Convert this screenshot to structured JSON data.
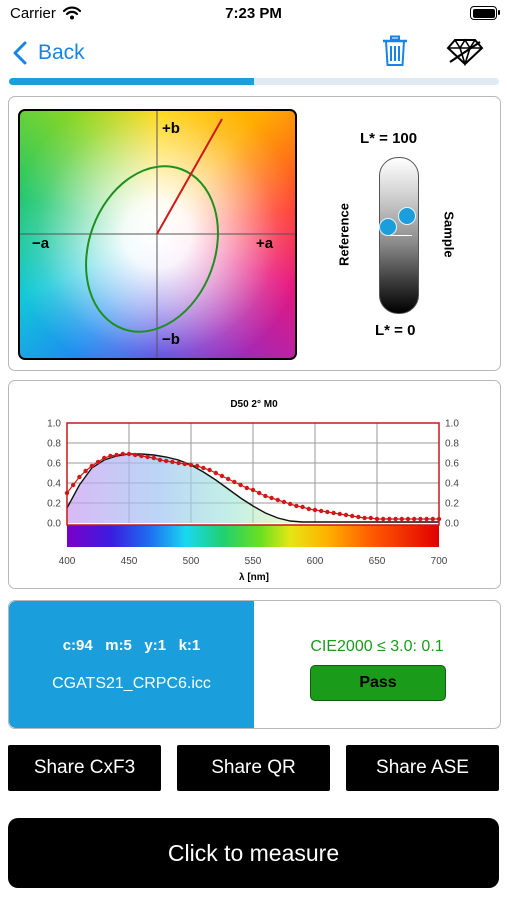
{
  "status_bar": {
    "carrier": "Carrier",
    "time": "7:23 PM"
  },
  "nav": {
    "back_label": "Back"
  },
  "lab": {
    "axis_plus_b": "+b",
    "axis_minus_b": "−b",
    "axis_minus_a": "−a",
    "axis_plus_a": "+a",
    "l_top": "L* = 100",
    "l_bottom": "L* = 0",
    "reference": "Reference",
    "sample": "Sample"
  },
  "chart_data": {
    "type": "line",
    "title": "D50 2° M0",
    "xlabel": "λ [nm]",
    "ylabel": "",
    "xlim": [
      400,
      700
    ],
    "ylim": [
      0,
      1.0
    ],
    "x_ticks": [
      "400",
      "450",
      "500",
      "550",
      "600",
      "650",
      "700"
    ],
    "y_ticks": [
      "0.0",
      "0.2",
      "0.4",
      "0.6",
      "0.8",
      "1.0"
    ],
    "series": [
      {
        "name": "",
        "style": "black line",
        "x": [
          400,
          410,
          420,
          430,
          440,
          450,
          460,
          470,
          480,
          490,
          500,
          510,
          520,
          530,
          540,
          550,
          560,
          570,
          580,
          590,
          600,
          610,
          620,
          630,
          640,
          650,
          660,
          670,
          680,
          690,
          700
        ],
        "y": [
          0.15,
          0.38,
          0.55,
          0.63,
          0.67,
          0.69,
          0.69,
          0.68,
          0.66,
          0.63,
          0.58,
          0.51,
          0.43,
          0.34,
          0.25,
          0.17,
          0.1,
          0.05,
          0.02,
          0.01,
          0.01,
          0.01,
          0.01,
          0.01,
          0.01,
          0.01,
          0.01,
          0.01,
          0.01,
          0.01,
          0.01
        ]
      },
      {
        "name": "",
        "style": "red dotted line",
        "x": [
          400,
          405,
          410,
          415,
          420,
          425,
          430,
          435,
          440,
          445,
          450,
          455,
          460,
          465,
          470,
          475,
          480,
          485,
          490,
          495,
          500,
          505,
          510,
          515,
          520,
          525,
          530,
          535,
          540,
          545,
          550,
          555,
          560,
          565,
          570,
          575,
          580,
          585,
          590,
          595,
          600,
          605,
          610,
          615,
          620,
          625,
          630,
          635,
          640,
          645,
          650,
          655,
          660,
          665,
          670,
          675,
          680,
          685,
          690,
          695,
          700
        ],
        "y": [
          0.3,
          0.38,
          0.46,
          0.52,
          0.57,
          0.61,
          0.65,
          0.67,
          0.68,
          0.69,
          0.69,
          0.68,
          0.67,
          0.66,
          0.65,
          0.63,
          0.62,
          0.61,
          0.6,
          0.59,
          0.58,
          0.57,
          0.55,
          0.53,
          0.5,
          0.47,
          0.44,
          0.41,
          0.38,
          0.35,
          0.33,
          0.3,
          0.27,
          0.25,
          0.23,
          0.21,
          0.19,
          0.17,
          0.16,
          0.14,
          0.13,
          0.12,
          0.11,
          0.1,
          0.09,
          0.08,
          0.07,
          0.06,
          0.05,
          0.05,
          0.04,
          0.04,
          0.04,
          0.04,
          0.04,
          0.04,
          0.04,
          0.04,
          0.04,
          0.04,
          0.04
        ]
      }
    ]
  },
  "swatch": {
    "cmyk": "c:94   m:5   y:1   k:1",
    "profile": "CGATS21_CRPC6.icc",
    "color": "#1a9fdc"
  },
  "result": {
    "text": "CIE2000 ≤ 3.0: 0.1",
    "pass_label": "Pass",
    "text_color": "#1a9c1a"
  },
  "share": {
    "cxf3": "Share CxF3",
    "qr": "Share QR",
    "ase": "Share ASE"
  },
  "measure_label": "Click to measure",
  "progress": {
    "fraction": 0.5
  }
}
